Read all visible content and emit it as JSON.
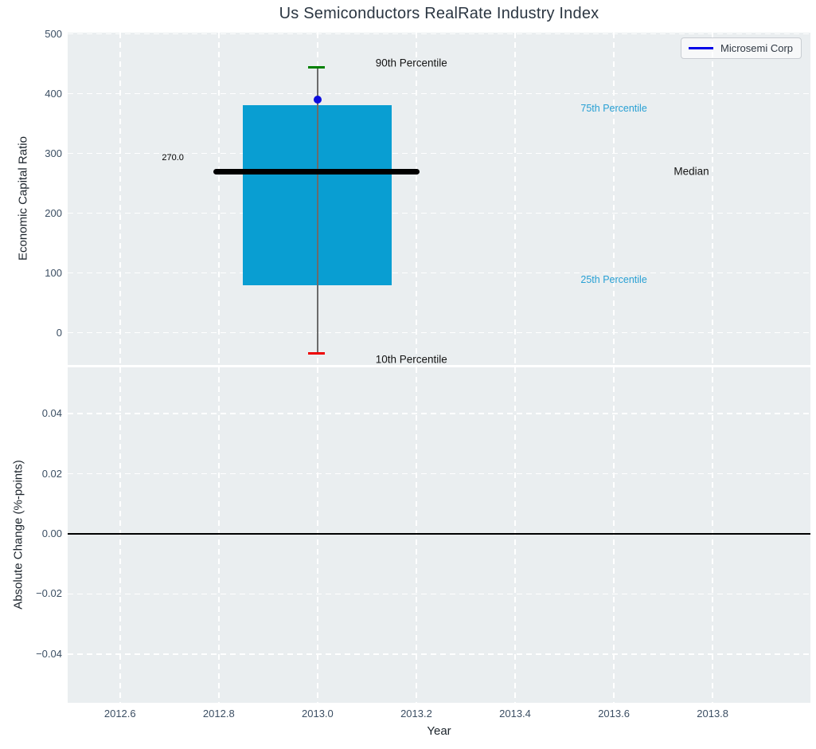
{
  "title": "Us Semiconductors RealRate Industry Index",
  "legend": {
    "label": "Microsemi Corp",
    "line_color": "#0000e8"
  },
  "xaxis": {
    "label": "Year",
    "lim": [
      2012.494,
      2013.998
    ],
    "ticks": [
      {
        "v": 2012.6,
        "label": "2012.6"
      },
      {
        "v": 2012.8,
        "label": "2012.8"
      },
      {
        "v": 2013.0,
        "label": "2013.0"
      },
      {
        "v": 2013.2,
        "label": "2013.2"
      },
      {
        "v": 2013.4,
        "label": "2013.4"
      },
      {
        "v": 2013.6,
        "label": "2013.6"
      },
      {
        "v": 2013.8,
        "label": "2013.8"
      }
    ]
  },
  "colors": {
    "plot_bg": "#eaeef0",
    "grid": "#ffffff",
    "box_fill": "#099ed2",
    "median": "#000000",
    "whisker": "#6b6b6b",
    "cap_high": "#008000",
    "cap_low": "#ee0000",
    "marker": "#0d0dde",
    "tick_label": "#3b4e63",
    "annotation_accent": "#28a0d4",
    "zero_line": "#000000"
  },
  "chart_data": [
    {
      "type": "box",
      "subplot": "top",
      "title": "Us Semiconductors RealRate Industry Index",
      "ylabel": "Economic Capital Ratio",
      "ylim": [
        -54,
        502
      ],
      "grid": true,
      "yticks": [
        {
          "v": 0,
          "label": "0"
        },
        {
          "v": 100,
          "label": "100"
        },
        {
          "v": 200,
          "label": "200"
        },
        {
          "v": 300,
          "label": "300"
        },
        {
          "v": 400,
          "label": "400"
        },
        {
          "v": 500,
          "label": "500"
        }
      ],
      "box": {
        "x_center": 2013.0,
        "x_left": 2012.849,
        "x_right": 2013.15,
        "q1": 80,
        "q3": 381,
        "median": 270,
        "median_label": "270.0",
        "p10": -34,
        "p90": 444,
        "median_line_x": [
          2012.789,
          2013.206
        ],
        "cap_x": [
          2012.981,
          2013.015
        ]
      },
      "marker": {
        "name": "Microsemi Corp",
        "x": 2013.0,
        "y": 390
      },
      "annotations": [
        {
          "text": "270.0",
          "x": 2012.707,
          "y": 293,
          "color": "#000000",
          "size": 11
        },
        {
          "text": "90th Percentile",
          "x": 2013.19,
          "y": 452,
          "color": "#141414",
          "size": 13.5
        },
        {
          "text": "75th Percentile",
          "x": 2013.6,
          "y": 376,
          "color": "#28a0d4",
          "size": 12.5
        },
        {
          "text": "Median",
          "x": 2013.757,
          "y": 270,
          "color": "#141414",
          "size": 13.5
        },
        {
          "text": "25th Percentile",
          "x": 2013.6,
          "y": 89,
          "color": "#28a0d4",
          "size": 12.5
        },
        {
          "text": "10th Percentile",
          "x": 2013.19,
          "y": -45,
          "color": "#141414",
          "size": 13.5
        }
      ]
    },
    {
      "type": "line",
      "subplot": "bottom",
      "ylabel": "Absolute Change (%-points)",
      "ylim": [
        -0.0562,
        0.0554
      ],
      "grid": true,
      "yticks": [
        {
          "v": 0.04,
          "label": "0.04"
        },
        {
          "v": 0.02,
          "label": "0.02"
        },
        {
          "v": 0.0,
          "label": "0.00"
        },
        {
          "v": -0.02,
          "label": "−0.02"
        },
        {
          "v": -0.04,
          "label": "−0.04"
        }
      ],
      "zero_line": 0.0,
      "series": [
        {
          "name": "Microsemi Corp",
          "x": [],
          "y": []
        }
      ]
    }
  ]
}
